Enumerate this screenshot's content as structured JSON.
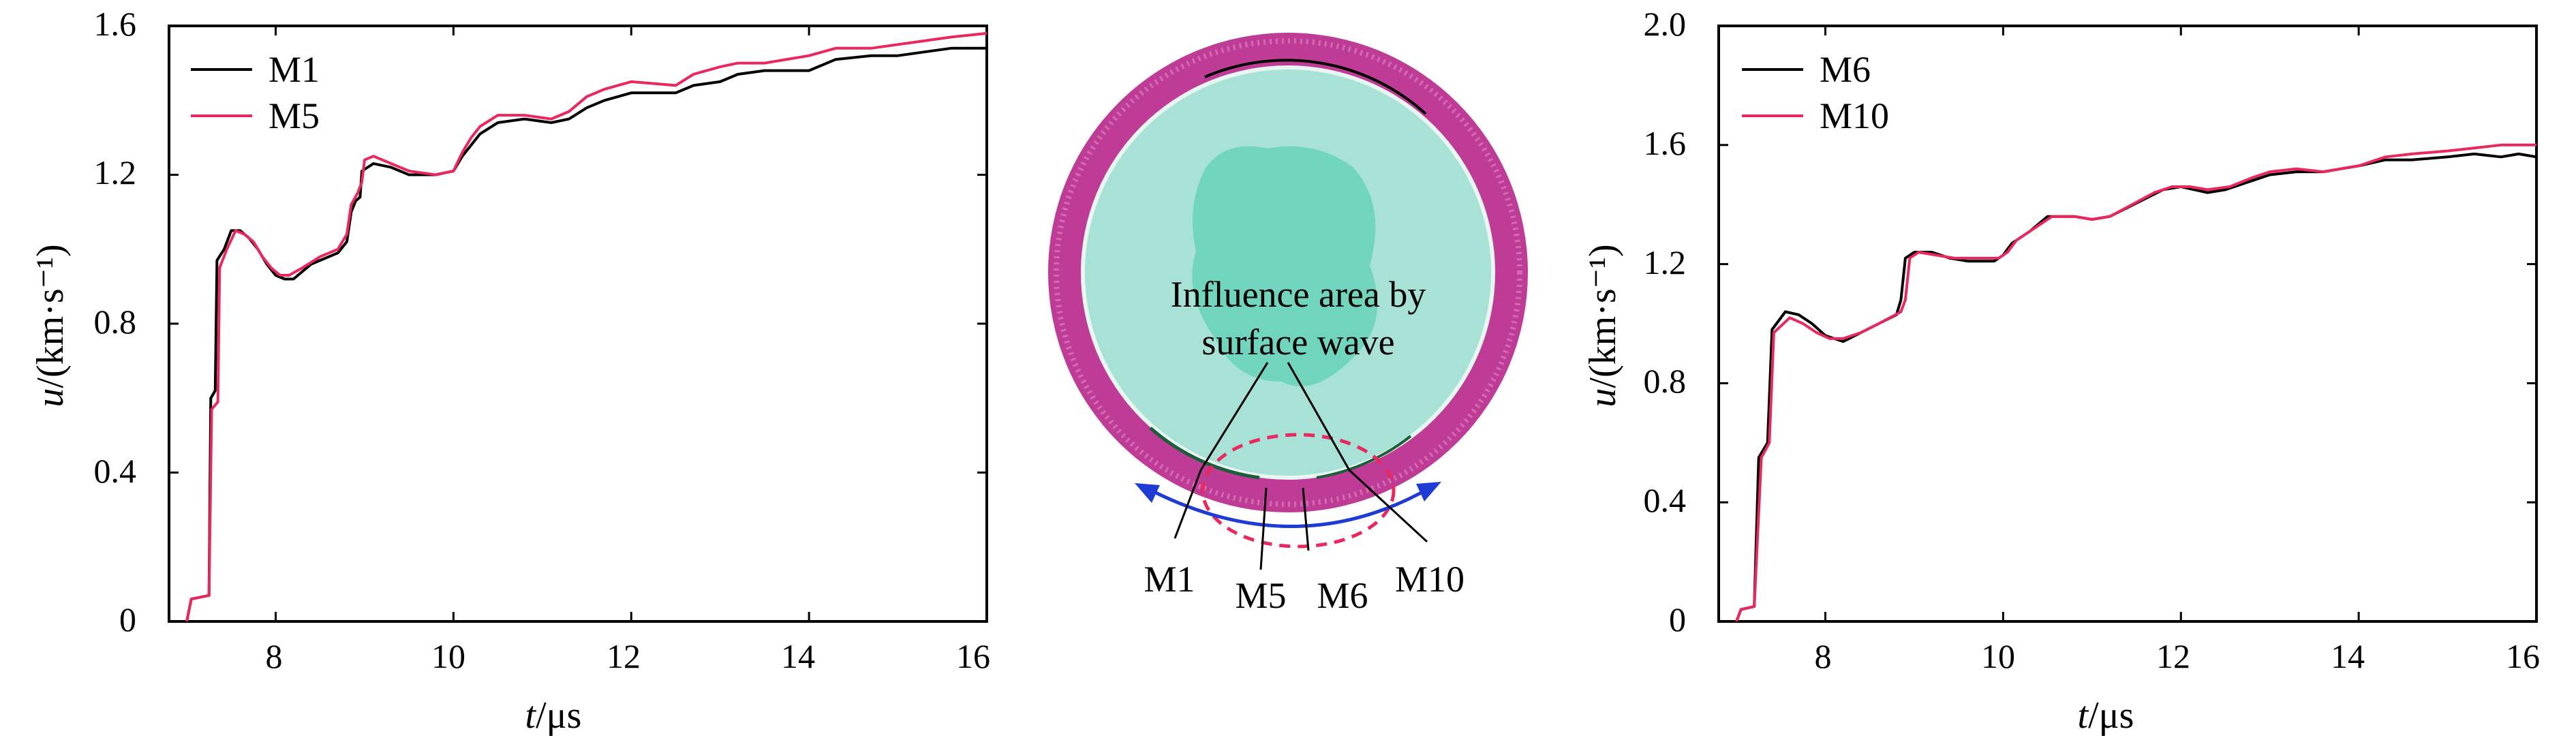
{
  "chart_data": [
    {
      "type": "line",
      "xlabel_italic": "t",
      "xlabel_unit": "/μs",
      "ylabel_italic": "u",
      "ylabel_unit": "/(km·s⁻¹)",
      "xlim": [
        6.8,
        16
      ],
      "ylim": [
        0,
        1.6
      ],
      "xticks": [
        8,
        10,
        12,
        14,
        16
      ],
      "yticks": [
        0,
        0.4,
        0.8,
        1.2,
        1.6
      ],
      "xtick_labels": [
        "8",
        "10",
        "12",
        "14",
        "16"
      ],
      "ytick_labels": [
        "0",
        "0.4",
        "0.8",
        "1.2",
        "1.6"
      ],
      "legend_position": "top-left",
      "series": [
        {
          "name": "M1",
          "color": "#000000",
          "points": [
            [
              7.0,
              0.0
            ],
            [
              7.05,
              0.06
            ],
            [
              7.25,
              0.07
            ],
            [
              7.27,
              0.6
            ],
            [
              7.32,
              0.62
            ],
            [
              7.34,
              0.97
            ],
            [
              7.42,
              1.0
            ],
            [
              7.5,
              1.05
            ],
            [
              7.6,
              1.05
            ],
            [
              7.7,
              1.03
            ],
            [
              7.8,
              1.0
            ],
            [
              7.9,
              0.96
            ],
            [
              8.0,
              0.93
            ],
            [
              8.1,
              0.92
            ],
            [
              8.2,
              0.92
            ],
            [
              8.3,
              0.94
            ],
            [
              8.4,
              0.96
            ],
            [
              8.5,
              0.97
            ],
            [
              8.7,
              0.99
            ],
            [
              8.8,
              1.02
            ],
            [
              8.85,
              1.1
            ],
            [
              8.9,
              1.13
            ],
            [
              8.95,
              1.14
            ],
            [
              8.97,
              1.21
            ],
            [
              9.1,
              1.23
            ],
            [
              9.3,
              1.22
            ],
            [
              9.5,
              1.2
            ],
            [
              9.8,
              1.2
            ],
            [
              10.0,
              1.21
            ],
            [
              10.1,
              1.25
            ],
            [
              10.2,
              1.28
            ],
            [
              10.3,
              1.31
            ],
            [
              10.5,
              1.34
            ],
            [
              10.8,
              1.35
            ],
            [
              11.1,
              1.34
            ],
            [
              11.3,
              1.35
            ],
            [
              11.5,
              1.38
            ],
            [
              11.7,
              1.4
            ],
            [
              12.0,
              1.42
            ],
            [
              12.5,
              1.42
            ],
            [
              12.7,
              1.44
            ],
            [
              13.0,
              1.45
            ],
            [
              13.2,
              1.47
            ],
            [
              13.5,
              1.48
            ],
            [
              14.0,
              1.48
            ],
            [
              14.3,
              1.51
            ],
            [
              14.7,
              1.52
            ],
            [
              15.0,
              1.52
            ],
            [
              15.3,
              1.53
            ],
            [
              15.6,
              1.54
            ],
            [
              16.0,
              1.54
            ]
          ]
        },
        {
          "name": "M5",
          "color": "#e8285e",
          "points": [
            [
              7.0,
              0.0
            ],
            [
              7.05,
              0.06
            ],
            [
              7.25,
              0.07
            ],
            [
              7.28,
              0.57
            ],
            [
              7.35,
              0.59
            ],
            [
              7.37,
              0.95
            ],
            [
              7.45,
              1.0
            ],
            [
              7.55,
              1.05
            ],
            [
              7.65,
              1.04
            ],
            [
              7.75,
              1.02
            ],
            [
              7.85,
              0.98
            ],
            [
              7.95,
              0.95
            ],
            [
              8.05,
              0.93
            ],
            [
              8.15,
              0.93
            ],
            [
              8.3,
              0.95
            ],
            [
              8.5,
              0.98
            ],
            [
              8.7,
              1.0
            ],
            [
              8.8,
              1.04
            ],
            [
              8.85,
              1.12
            ],
            [
              8.92,
              1.15
            ],
            [
              8.97,
              1.18
            ],
            [
              9.0,
              1.24
            ],
            [
              9.1,
              1.25
            ],
            [
              9.3,
              1.23
            ],
            [
              9.5,
              1.21
            ],
            [
              9.8,
              1.2
            ],
            [
              10.0,
              1.21
            ],
            [
              10.1,
              1.26
            ],
            [
              10.2,
              1.3
            ],
            [
              10.3,
              1.33
            ],
            [
              10.5,
              1.36
            ],
            [
              10.8,
              1.36
            ],
            [
              11.1,
              1.35
            ],
            [
              11.3,
              1.37
            ],
            [
              11.5,
              1.41
            ],
            [
              11.7,
              1.43
            ],
            [
              12.0,
              1.45
            ],
            [
              12.5,
              1.44
            ],
            [
              12.7,
              1.47
            ],
            [
              13.0,
              1.49
            ],
            [
              13.2,
              1.5
            ],
            [
              13.5,
              1.5
            ],
            [
              14.0,
              1.52
            ],
            [
              14.3,
              1.54
            ],
            [
              14.7,
              1.54
            ],
            [
              15.0,
              1.55
            ],
            [
              15.3,
              1.56
            ],
            [
              15.6,
              1.57
            ],
            [
              16.0,
              1.58
            ]
          ]
        }
      ]
    },
    {
      "type": "line",
      "xlabel_italic": "t",
      "xlabel_unit": "/μs",
      "ylabel_italic": "u",
      "ylabel_unit": "/(km·s⁻¹)",
      "xlim": [
        6.8,
        16
      ],
      "ylim": [
        0,
        2.0
      ],
      "xticks": [
        8,
        10,
        12,
        14,
        16
      ],
      "yticks": [
        0,
        0.4,
        0.8,
        1.2,
        1.6,
        2.0
      ],
      "xtick_labels": [
        "8",
        "10",
        "12",
        "14",
        "16"
      ],
      "ytick_labels": [
        "0",
        "0.4",
        "0.8",
        "1.2",
        "1.6",
        "2.0"
      ],
      "legend_position": "top-left",
      "series": [
        {
          "name": "M6",
          "color": "#000000",
          "points": [
            [
              7.0,
              0.0
            ],
            [
              7.05,
              0.04
            ],
            [
              7.2,
              0.05
            ],
            [
              7.25,
              0.55
            ],
            [
              7.35,
              0.6
            ],
            [
              7.4,
              0.98
            ],
            [
              7.55,
              1.04
            ],
            [
              7.7,
              1.03
            ],
            [
              7.85,
              1.0
            ],
            [
              8.0,
              0.96
            ],
            [
              8.1,
              0.95
            ],
            [
              8.2,
              0.94
            ],
            [
              8.4,
              0.97
            ],
            [
              8.6,
              1.0
            ],
            [
              8.8,
              1.03
            ],
            [
              8.85,
              1.08
            ],
            [
              8.9,
              1.22
            ],
            [
              9.0,
              1.24
            ],
            [
              9.2,
              1.24
            ],
            [
              9.4,
              1.22
            ],
            [
              9.6,
              1.21
            ],
            [
              9.9,
              1.21
            ],
            [
              10.0,
              1.23
            ],
            [
              10.1,
              1.27
            ],
            [
              10.3,
              1.31
            ],
            [
              10.5,
              1.36
            ],
            [
              10.8,
              1.36
            ],
            [
              11.0,
              1.35
            ],
            [
              11.2,
              1.36
            ],
            [
              11.4,
              1.39
            ],
            [
              11.6,
              1.42
            ],
            [
              11.8,
              1.45
            ],
            [
              12.0,
              1.46
            ],
            [
              12.3,
              1.44
            ],
            [
              12.5,
              1.45
            ],
            [
              12.8,
              1.48
            ],
            [
              13.0,
              1.5
            ],
            [
              13.3,
              1.51
            ],
            [
              13.6,
              1.51
            ],
            [
              14.0,
              1.53
            ],
            [
              14.3,
              1.55
            ],
            [
              14.6,
              1.55
            ],
            [
              15.0,
              1.56
            ],
            [
              15.3,
              1.57
            ],
            [
              15.6,
              1.56
            ],
            [
              15.8,
              1.57
            ],
            [
              16.0,
              1.56
            ]
          ]
        },
        {
          "name": "M10",
          "color": "#e8285e",
          "points": [
            [
              7.0,
              0.0
            ],
            [
              7.05,
              0.04
            ],
            [
              7.2,
              0.05
            ],
            [
              7.28,
              0.55
            ],
            [
              7.37,
              0.6
            ],
            [
              7.42,
              0.97
            ],
            [
              7.6,
              1.02
            ],
            [
              7.75,
              1.0
            ],
            [
              7.9,
              0.97
            ],
            [
              8.05,
              0.95
            ],
            [
              8.2,
              0.95
            ],
            [
              8.4,
              0.97
            ],
            [
              8.6,
              1.0
            ],
            [
              8.85,
              1.04
            ],
            [
              8.9,
              1.08
            ],
            [
              8.95,
              1.22
            ],
            [
              9.05,
              1.24
            ],
            [
              9.25,
              1.23
            ],
            [
              9.45,
              1.22
            ],
            [
              9.7,
              1.22
            ],
            [
              9.95,
              1.22
            ],
            [
              10.05,
              1.24
            ],
            [
              10.15,
              1.28
            ],
            [
              10.35,
              1.32
            ],
            [
              10.55,
              1.36
            ],
            [
              10.8,
              1.36
            ],
            [
              11.0,
              1.35
            ],
            [
              11.2,
              1.36
            ],
            [
              11.45,
              1.4
            ],
            [
              11.7,
              1.44
            ],
            [
              11.9,
              1.46
            ],
            [
              12.1,
              1.46
            ],
            [
              12.3,
              1.45
            ],
            [
              12.55,
              1.46
            ],
            [
              12.8,
              1.49
            ],
            [
              13.0,
              1.51
            ],
            [
              13.3,
              1.52
            ],
            [
              13.6,
              1.51
            ],
            [
              14.0,
              1.53
            ],
            [
              14.3,
              1.56
            ],
            [
              14.6,
              1.57
            ],
            [
              15.0,
              1.58
            ],
            [
              15.3,
              1.59
            ],
            [
              15.6,
              1.6
            ],
            [
              16.0,
              1.6
            ]
          ]
        }
      ]
    }
  ],
  "diagram": {
    "annotation_line1": "Influence area by",
    "annotation_line2": "surface wave",
    "labels": [
      "M1",
      "M5",
      "M6",
      "M10"
    ],
    "outer_ring_color": "#bf3c96",
    "inner_fill_color": "#a8e2d6",
    "arrow_color": "#1f3bd6",
    "dashed_color": "#e8285e"
  }
}
